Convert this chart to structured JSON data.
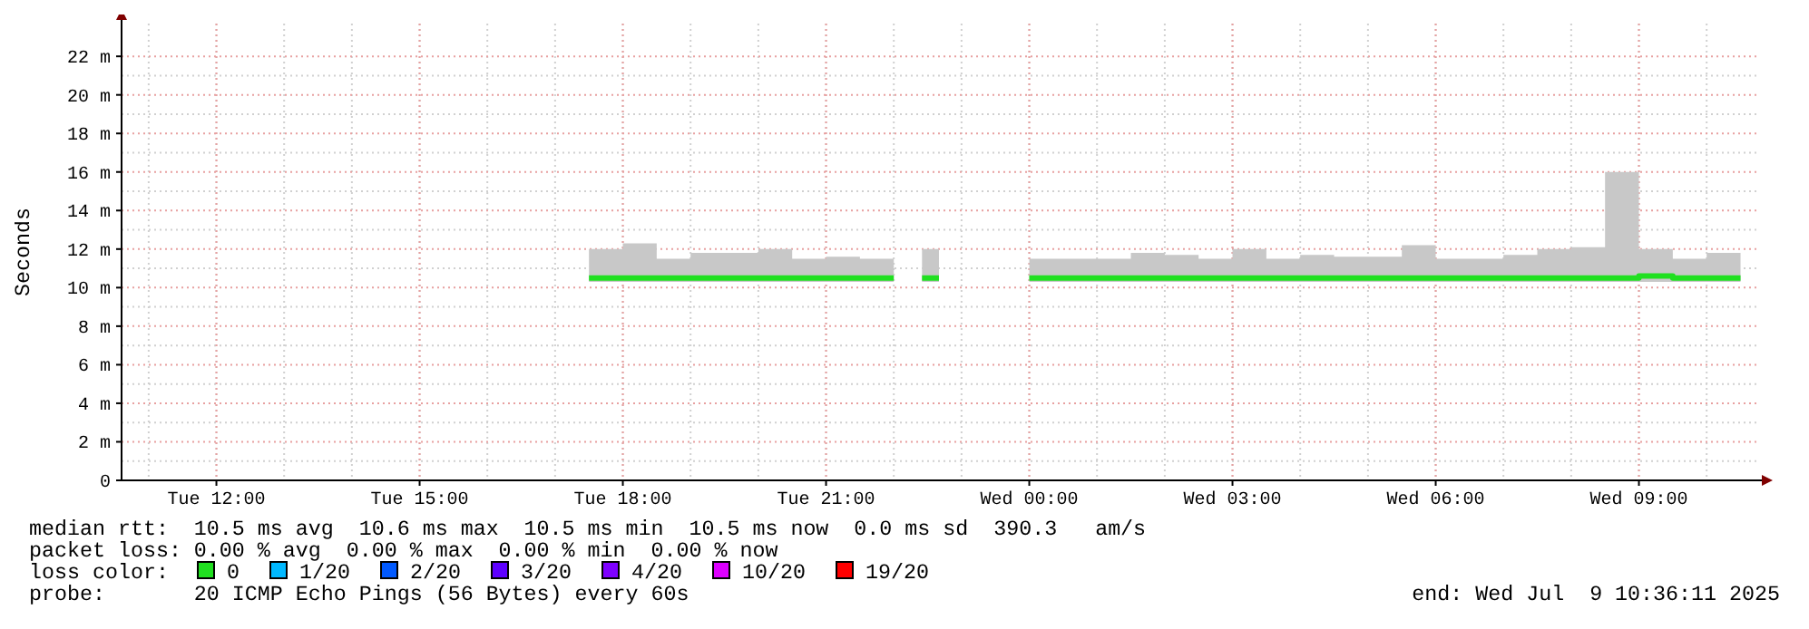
{
  "chart_data": {
    "type": "line",
    "ylabel": "Seconds",
    "xlim": [
      "2025-07-08T10:36",
      "2025-07-09T10:36"
    ],
    "xticks": [
      {
        "value": "2025-07-08T12:00",
        "label": "Tue 12:00"
      },
      {
        "value": "2025-07-08T15:00",
        "label": "Tue 15:00"
      },
      {
        "value": "2025-07-08T18:00",
        "label": "Tue 18:00"
      },
      {
        "value": "2025-07-08T21:00",
        "label": "Tue 21:00"
      },
      {
        "value": "2025-07-09T00:00",
        "label": "Wed 00:00"
      },
      {
        "value": "2025-07-09T03:00",
        "label": "Wed 03:00"
      },
      {
        "value": "2025-07-09T06:00",
        "label": "Wed 06:00"
      },
      {
        "value": "2025-07-09T09:00",
        "label": "Wed 09:00"
      }
    ],
    "ylim": [
      0,
      23.7
    ],
    "yticks": [
      0,
      {
        "value": 2,
        "label": "2 m"
      },
      {
        "value": 4,
        "label": "4 m"
      },
      {
        "value": 6,
        "label": "6 m"
      },
      {
        "value": 8,
        "label": "8 m"
      },
      {
        "value": 10,
        "label": "10 m"
      },
      {
        "value": 12,
        "label": "12 m"
      },
      {
        "value": 14,
        "label": "14 m"
      },
      {
        "value": 16,
        "label": "16 m"
      },
      {
        "value": 18,
        "label": "18 m"
      },
      {
        "value": 20,
        "label": "20 m"
      },
      {
        "value": 22,
        "label": "22 m"
      }
    ],
    "grid": true,
    "legend": "bottom",
    "legend_title": "loss color:",
    "series": [
      {
        "name": "0",
        "color": "#20e020",
        "x": [
          "2025-07-08T17:30",
          "2025-07-08T18:00",
          "2025-07-08T18:30",
          "2025-07-08T19:00",
          "2025-07-08T19:30",
          "2025-07-08T20:00",
          "2025-07-08T20:30",
          "2025-07-08T21:00",
          "2025-07-08T21:30",
          "2025-07-08T22:00",
          "2025-07-08T22:15",
          "2025-07-08T22:25",
          "2025-07-08T22:40",
          "2025-07-08T22:45",
          "2025-07-09T00:00",
          "2025-07-09T00:30",
          "2025-07-09T01:00",
          "2025-07-09T01:30",
          "2025-07-09T02:00",
          "2025-07-09T02:30",
          "2025-07-09T03:00",
          "2025-07-09T03:30",
          "2025-07-09T04:00",
          "2025-07-09T04:30",
          "2025-07-09T05:00",
          "2025-07-09T05:30",
          "2025-07-09T06:00",
          "2025-07-09T06:30",
          "2025-07-09T07:00",
          "2025-07-09T07:30",
          "2025-07-09T08:00",
          "2025-07-09T08:30",
          "2025-07-09T09:00",
          "2025-07-09T09:30",
          "2025-07-09T10:00",
          "2025-07-09T10:30"
        ],
        "values": [
          10.5,
          10.5,
          10.5,
          10.5,
          10.5,
          10.5,
          10.5,
          10.5,
          10.5,
          10.5,
          null,
          10.5,
          10.5,
          null,
          10.5,
          10.5,
          10.5,
          10.5,
          10.5,
          10.5,
          10.5,
          10.5,
          10.5,
          10.5,
          10.5,
          10.5,
          10.5,
          10.5,
          10.5,
          10.5,
          10.5,
          10.5,
          10.6,
          10.5,
          10.5,
          10.5
        ],
        "lower": [
          10.3,
          10.3,
          10.3,
          10.3,
          10.3,
          10.3,
          10.3,
          10.3,
          10.3,
          10.3,
          null,
          10.3,
          10.3,
          null,
          10.3,
          10.3,
          10.3,
          10.3,
          10.3,
          10.3,
          10.3,
          10.3,
          10.3,
          10.3,
          10.3,
          10.3,
          10.3,
          10.3,
          10.3,
          10.3,
          10.3,
          10.3,
          10.3,
          10.3,
          10.3,
          10.3
        ],
        "upper": [
          12.0,
          12.3,
          11.5,
          11.8,
          11.8,
          12.0,
          11.5,
          11.6,
          11.5,
          11.6,
          null,
          12.0,
          12.0,
          null,
          11.5,
          11.5,
          11.5,
          11.8,
          11.7,
          11.5,
          12.0,
          11.5,
          11.7,
          11.6,
          11.6,
          12.2,
          11.5,
          11.5,
          11.7,
          12.0,
          12.1,
          16.0,
          12.0,
          11.5,
          11.8,
          11.5
        ]
      },
      {
        "name": "1/20",
        "color": "#00b8ff"
      },
      {
        "name": "2/20",
        "color": "#0059ff"
      },
      {
        "name": "3/20",
        "color": "#5e00ff"
      },
      {
        "name": "4/20",
        "color": "#7e00ff"
      },
      {
        "name": "10/20",
        "color": "#dd00ff"
      },
      {
        "name": "19/20",
        "color": "#ff0000"
      }
    ],
    "annotations": [
      "median rtt:  10.5 ms avg  10.6 ms max  10.5 ms min  10.5 ms now  0.0 ms sd  390.3   am/s",
      "packet loss: 0.00 % avg  0.00 % max  0.00 % min  0.00 % now",
      "probe:       20 ICMP Echo Pings (56 Bytes) every 60s",
      "end: Wed Jul  9 10:36:11 2025"
    ]
  }
}
